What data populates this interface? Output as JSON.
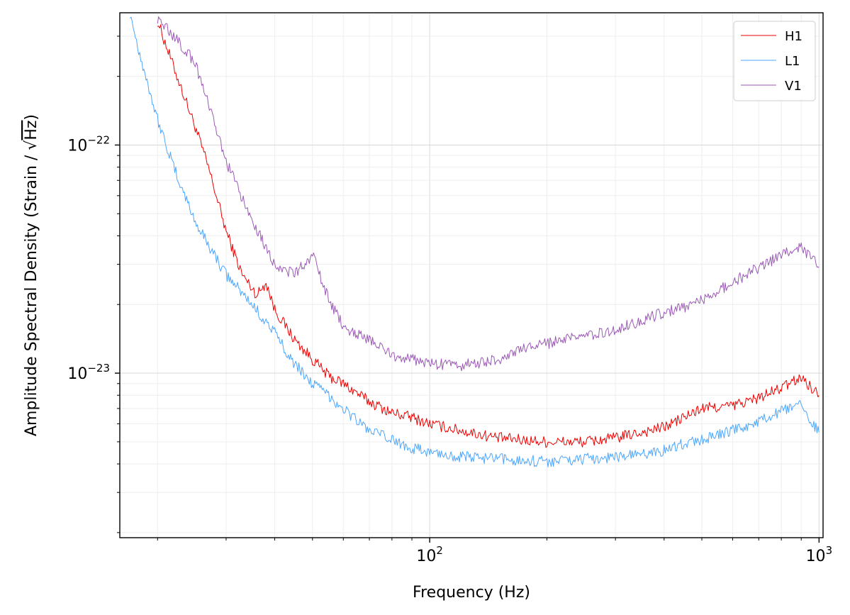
{
  "chart_data": {
    "type": "line",
    "title": "",
    "xlabel": "Frequency (Hz)",
    "ylabel_prefix": "Amplitude Spectral Density (Strain / ",
    "ylabel_sqrt": "√",
    "ylabel_unit": "Hz",
    "ylabel_suffix": ")",
    "xscale": "log",
    "yscale": "log",
    "xlim": [
      16,
      1024
    ],
    "ylim": [
      1.9e-24,
      3.8e-22
    ],
    "grid": true,
    "legend_position": "top-right",
    "x_ticks": [
      {
        "value": 100,
        "base": "10",
        "exp": "2"
      },
      {
        "value": 1000,
        "base": "10",
        "exp": "3"
      }
    ],
    "y_ticks": [
      {
        "value": 1e-23,
        "base": "10",
        "exp": "−23"
      },
      {
        "value": 1e-22,
        "base": "10",
        "exp": "−22"
      }
    ],
    "series": [
      {
        "name": "H1",
        "color": "#ee0000",
        "x": [
          20,
          22,
          25,
          27,
          30,
          33,
          36,
          38,
          40,
          45,
          50,
          55,
          60,
          70,
          80,
          90,
          100,
          120,
          150,
          200,
          250,
          300,
          350,
          400,
          450,
          500,
          600,
          700,
          800,
          900,
          1000
        ],
        "y": [
          3.5e-22,
          2.2e-22,
          1.2e-22,
          8e-23,
          4.2e-23,
          2.7e-23,
          2.2e-23,
          2.5e-23,
          1.9e-23,
          1.4e-23,
          1.15e-23,
          9.7e-24,
          9e-24,
          7.5e-24,
          6.7e-24,
          6.4e-24,
          6e-24,
          5.6e-24,
          5.2e-24,
          5e-24,
          5e-24,
          5.2e-24,
          5.5e-24,
          5.8e-24,
          6.4e-24,
          7e-24,
          7.2e-24,
          7.8e-24,
          8.6e-24,
          9.6e-24,
          8e-24
        ]
      },
      {
        "name": "L1",
        "color": "#4ba6ff",
        "x": [
          17,
          18,
          20,
          22,
          25,
          30,
          35,
          40,
          45,
          50,
          55,
          60,
          70,
          80,
          90,
          100,
          120,
          150,
          200,
          250,
          300,
          350,
          400,
          450,
          500,
          600,
          700,
          800,
          900,
          1000
        ],
        "y": [
          3.8e-22,
          2.5e-22,
          1.3e-22,
          8e-23,
          4.6e-23,
          2.7e-23,
          2e-23,
          1.5e-23,
          1.1e-23,
          9e-24,
          8e-24,
          7e-24,
          5.6e-24,
          5.1e-24,
          4.7e-24,
          4.5e-24,
          4.3e-24,
          4.2e-24,
          4.1e-24,
          4.2e-24,
          4.3e-24,
          4.4e-24,
          4.6e-24,
          4.9e-24,
          5.1e-24,
          5.6e-24,
          6.1e-24,
          6.8e-24,
          7.2e-24,
          5.5e-24
        ]
      },
      {
        "name": "V1",
        "color": "#9b59b6",
        "x": [
          20,
          22,
          25,
          27,
          30,
          33,
          36,
          40,
          45,
          50,
          55,
          60,
          70,
          80,
          90,
          100,
          120,
          150,
          180,
          200,
          250,
          300,
          350,
          400,
          450,
          500,
          600,
          700,
          800,
          900,
          1000
        ],
        "y": [
          3.6e-22,
          3e-22,
          2.3e-22,
          1.5e-22,
          8.5e-23,
          5.8e-23,
          4.3e-23,
          3e-23,
          2.7e-23,
          3.3e-23,
          2.1e-23,
          1.6e-23,
          1.4e-23,
          1.2e-23,
          1.15e-23,
          1.1e-23,
          1.08e-23,
          1.15e-23,
          1.3e-23,
          1.35e-23,
          1.45e-23,
          1.55e-23,
          1.7e-23,
          1.85e-23,
          1.95e-23,
          2.1e-23,
          2.5e-23,
          2.9e-23,
          3.3e-23,
          3.6e-23,
          2.9e-23
        ]
      }
    ]
  }
}
